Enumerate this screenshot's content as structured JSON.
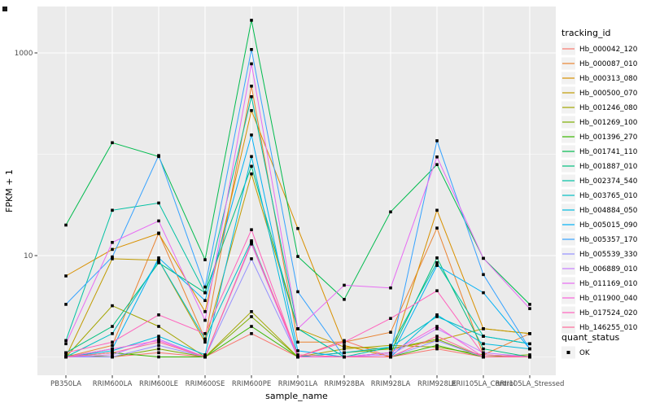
{
  "chart_data": {
    "type": "line",
    "title": "",
    "xlabel": "sample_name",
    "ylabel": "FPKM + 1",
    "y_scale": "log10",
    "y_tick_labels": [
      "1000",
      "10"
    ],
    "y_tick_values": [
      1000,
      10
    ],
    "y_minor_values": [
      100,
      1
    ],
    "ylim": [
      0.8,
      2300
    ],
    "grid": true,
    "legend_position": "right",
    "categories": [
      "PB350LA",
      "RRIM600LA",
      "RRIM600LE",
      "RRIM600SE",
      "RRIM600PE",
      "RRIM901LA",
      "RRIM928BA",
      "RRIM928LA",
      "RRIM928LE",
      "RRII105LA_Control",
      "RRII105LA_Stressed"
    ],
    "legend_title": "tracking_id",
    "series": [
      {
        "name": "Hb_000042_120",
        "color": "#F8766D",
        "values": [
          1.0,
          1.0,
          1.1,
          1.0,
          1.7,
          1.0,
          1.45,
          1.0,
          1.2,
          1.0,
          1.0
        ]
      },
      {
        "name": "Hb_000087_010",
        "color": "#EA8331",
        "values": [
          1.0,
          1.3,
          16.7,
          1.5,
          470,
          1.4,
          1.4,
          1.75,
          18.7,
          1.05,
          1.7
        ]
      },
      {
        "name": "Hb_000313_080",
        "color": "#D89000",
        "values": [
          6.3,
          11.5,
          16.5,
          2.8,
          270,
          18.5,
          1.3,
          1.0,
          28,
          1.9,
          1.7
        ]
      },
      {
        "name": "Hb_000500_070",
        "color": "#C09B00",
        "values": [
          1.0,
          9.3,
          9.0,
          1.4,
          64,
          1.9,
          1.25,
          1.2,
          1.45,
          1.9,
          1.7
        ]
      },
      {
        "name": "Hb_001246_080",
        "color": "#A3A500",
        "values": [
          1.0,
          3.2,
          2.0,
          1.0,
          2.8,
          1.0,
          1.2,
          1.3,
          1.25,
          1.05,
          1.0
        ]
      },
      {
        "name": "Hb_001269_100",
        "color": "#7CAE00",
        "values": [
          1.05,
          1.0,
          1.2,
          1.0,
          2.5,
          1.0,
          1.1,
          1.2,
          1.5,
          1.0,
          1.05
        ]
      },
      {
        "name": "Hb_001396_270",
        "color": "#39B600",
        "values": [
          1.0,
          1.1,
          1.0,
          1.0,
          2.0,
          1.0,
          1.0,
          1.0,
          1.3,
          1.0,
          1.0
        ]
      },
      {
        "name": "Hb_001741_110",
        "color": "#00BB4E",
        "values": [
          20,
          130,
          95,
          9.1,
          2100,
          9.8,
          3.7,
          27,
          79,
          9.4,
          3.3
        ]
      },
      {
        "name": "Hb_001887_010",
        "color": "#00BF7D",
        "values": [
          1.1,
          2.0,
          8.5,
          4.3,
          76,
          1.9,
          1.0,
          1.1,
          9.5,
          1.2,
          1.0
        ]
      },
      {
        "name": "Hb_002374_540",
        "color": "#00C1A3",
        "values": [
          1.45,
          28,
          33,
          4.3,
          370,
          1.9,
          1.0,
          1.25,
          8.5,
          1.6,
          1.35
        ]
      },
      {
        "name": "Hb_003765_010",
        "color": "#00BFC4",
        "values": [
          1.0,
          1.7,
          9.0,
          1.5,
          14,
          1.0,
          1.1,
          1.25,
          2.5,
          1.6,
          1.35
        ]
      },
      {
        "name": "Hb_004884_050",
        "color": "#00BADE",
        "values": [
          1.0,
          1.15,
          1.6,
          1.05,
          95,
          1.0,
          1.0,
          1.0,
          2.6,
          1.35,
          1.2
        ]
      },
      {
        "name": "Hb_005015_090",
        "color": "#00B0F6",
        "values": [
          1.0,
          1.2,
          9.5,
          3.6,
          155,
          1.15,
          1.0,
          1.0,
          8.0,
          4.3,
          1.2
        ]
      },
      {
        "name": "Hb_005357_170",
        "color": "#35A2FF",
        "values": [
          3.3,
          9.7,
          97,
          4.9,
          1080,
          4.4,
          1.0,
          1.1,
          136,
          6.5,
          1.2
        ]
      },
      {
        "name": "Hb_005539_330",
        "color": "#9590FF",
        "values": [
          1.0,
          1.0,
          1.3,
          1.0,
          9.3,
          1.0,
          1.0,
          1.0,
          1.45,
          1.0,
          1.0
        ]
      },
      {
        "name": "Hb_006889_010",
        "color": "#C77CFF",
        "values": [
          1.0,
          1.05,
          1.5,
          1.0,
          13,
          1.0,
          1.0,
          1.05,
          1.9,
          1.1,
          1.0
        ]
      },
      {
        "name": "Hb_011169_010",
        "color": "#E76BF3",
        "values": [
          1.35,
          13.5,
          22,
          2.3,
          780,
          1.9,
          5.1,
          4.8,
          94,
          9.4,
          3.0
        ]
      },
      {
        "name": "Hb_011900_040",
        "color": "#FA62DB",
        "values": [
          1.0,
          1.2,
          1.45,
          1.0,
          13.5,
          1.0,
          1.0,
          1.1,
          2.0,
          1.0,
          1.0
        ]
      },
      {
        "name": "Hb_017524_020",
        "color": "#FF62BC",
        "values": [
          1.1,
          1.4,
          2.6,
          1.7,
          18,
          1.0,
          1.4,
          2.4,
          4.5,
          1.05,
          1.0
        ]
      },
      {
        "name": "Hb_146255_010",
        "color": "#FF6A98",
        "values": [
          1.0,
          1.1,
          1.4,
          1.0,
          13.5,
          1.05,
          1.0,
          1.0,
          1.6,
          1.0,
          1.0
        ]
      }
    ],
    "quant_legend": {
      "title": "quant_status",
      "items": [
        "OK"
      ],
      "point_color": "#000000"
    }
  },
  "style_colors": {
    "panel_bg": "#EBEBEB",
    "grid": "#FFFFFF",
    "tick_text": "#4D4D4D",
    "title_text": "#000000",
    "legend_key_bg": "#F2F2F2",
    "point": "#000000"
  }
}
